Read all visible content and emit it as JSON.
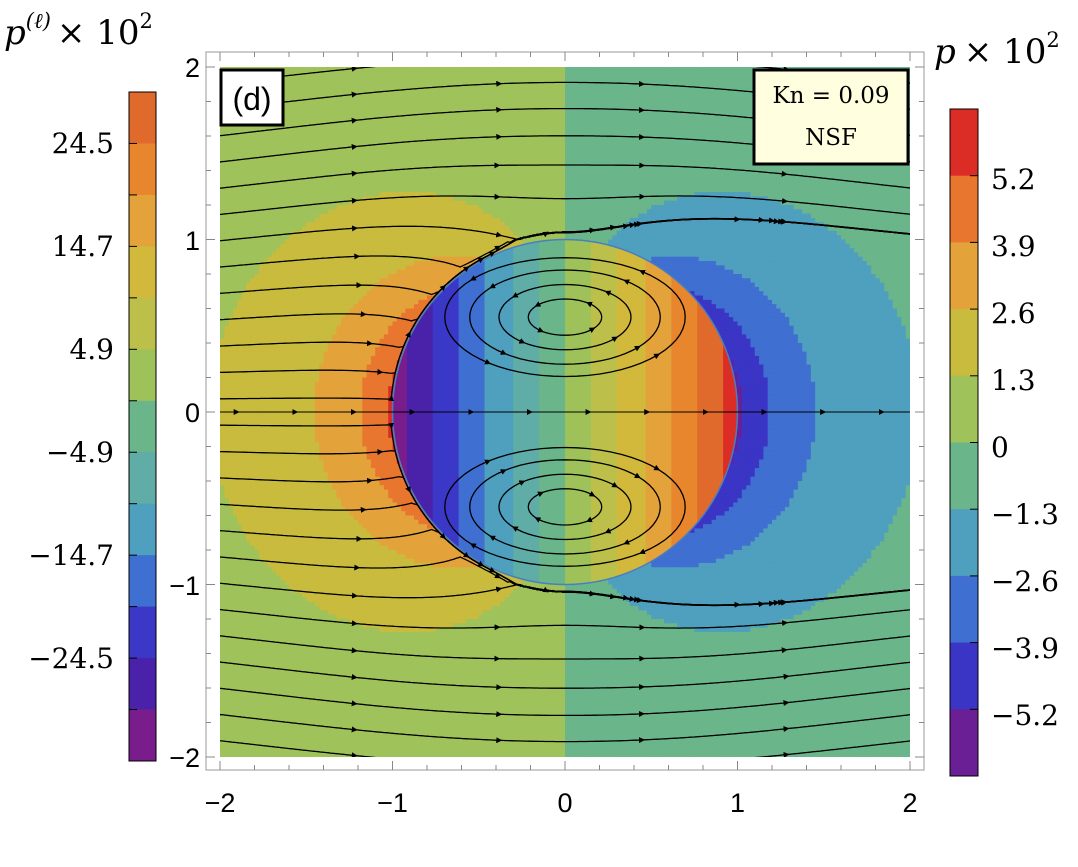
{
  "panel_label": "(d)",
  "info_box": {
    "line1": "Kn = 0.09",
    "line2": "NSF"
  },
  "left_colorbar": {
    "title_base": "p",
    "title_sup": "(ℓ)",
    "title_mult": "× 10",
    "title_exp": "2",
    "tick_labels": [
      "24.5",
      "14.7",
      "4.9",
      "−4.9",
      "−14.7",
      "−24.5"
    ]
  },
  "right_colorbar": {
    "title_base": "p",
    "title_mult": "× 10",
    "title_exp": "2",
    "tick_labels": [
      "5.2",
      "3.9",
      "2.6",
      "1.3",
      "0",
      "−1.3",
      "−2.6",
      "−3.9",
      "−5.2"
    ]
  },
  "x_tick_labels": [
    "−2",
    "−1",
    "0",
    "1",
    "2"
  ],
  "y_tick_labels": [
    "2",
    "1",
    "0",
    "−1",
    "−2"
  ],
  "chart_data": {
    "type": "heatmap",
    "description_fields": {
      "domain_x": [
        -2,
        2
      ],
      "domain_y": [
        -2,
        2
      ],
      "inner_region_radius": 1,
      "flow": "uniform flow past a sphere with internal recirculation"
    },
    "xlim": [
      -2,
      2
    ],
    "ylim": [
      -2,
      2
    ],
    "x_ticks": [
      -2,
      -1,
      0,
      1,
      2
    ],
    "y_ticks": [
      -2,
      -1,
      0,
      1,
      2
    ],
    "outer_field": {
      "name": "p × 10^2",
      "contour_levels": [
        -6.5,
        -5.2,
        -3.9,
        -2.6,
        -1.3,
        0,
        1.3,
        2.6,
        3.9,
        5.2,
        6.5
      ],
      "colorbar_ticks": [
        5.2,
        3.9,
        2.6,
        1.3,
        0,
        -1.3,
        -2.6,
        -3.9,
        -5.2
      ]
    },
    "inner_field": {
      "name": "p^(ℓ) × 10^2",
      "contour_levels": [
        -34.3,
        -29.4,
        -24.5,
        -19.6,
        -14.7,
        -9.8,
        -4.9,
        0,
        4.9,
        9.8,
        14.7,
        19.6,
        24.5,
        29.4,
        34.3
      ],
      "colorbar_ticks": [
        24.5,
        14.7,
        4.9,
        -4.9,
        -14.7,
        -24.5
      ]
    },
    "grid": false,
    "legend": "colorbars left and right"
  },
  "colors": {
    "outer_bands": [
      "#6a1f94",
      "#3a35c4",
      "#3f6fd0",
      "#4f9fbe",
      "#6ab58a",
      "#9fc25a",
      "#c9bb3d",
      "#e4a23a",
      "#e8762e",
      "#dc2c26"
    ],
    "inner_bands": [
      "#7a1d8c",
      "#4a22aa",
      "#3b38c8",
      "#3f6fd0",
      "#4f9fbe",
      "#5fada6",
      "#6ab58a",
      "#9ec259",
      "#bcc04a",
      "#d2b83b",
      "#e4a23a",
      "#e8862e",
      "#e06a2c",
      "#dc2c26"
    ]
  }
}
